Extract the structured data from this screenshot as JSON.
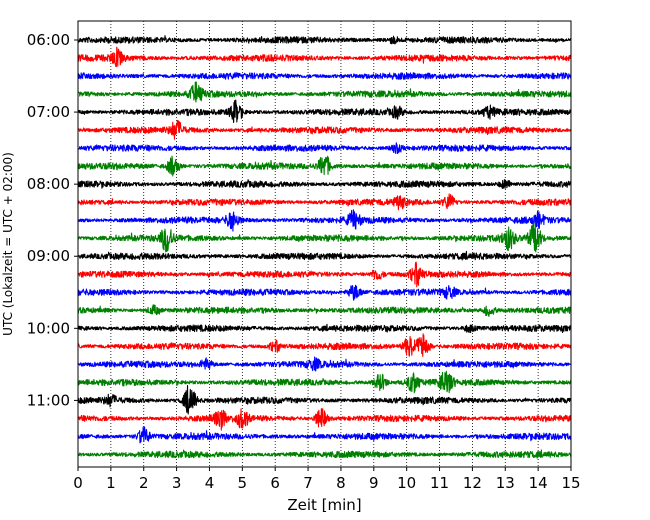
{
  "chart_data": {
    "type": "line",
    "title": "",
    "xlabel": "Zeit  [min]",
    "ylabel": "UTC (Lokalzeit = UTC + 02:00)",
    "xlim": [
      0,
      15
    ],
    "x_ticks": [
      "0",
      "1",
      "2",
      "3",
      "4",
      "5",
      "6",
      "7",
      "8",
      "9",
      "10",
      "11",
      "12",
      "13",
      "14",
      "15"
    ],
    "y_ticks": [
      "06:00",
      "07:00",
      "08:00",
      "09:00",
      "10:00",
      "11:00"
    ],
    "grid": "vertical dotted",
    "legend": "none",
    "trace_colors": [
      "#000000",
      "#ff0000",
      "#0000ff",
      "#008000"
    ],
    "traces": [
      {
        "start": "06:00",
        "color": "#000000",
        "events": [
          [
            9.6,
            3
          ]
        ]
      },
      {
        "start": "06:15",
        "color": "#ff0000",
        "events": [
          [
            1.2,
            7
          ]
        ]
      },
      {
        "start": "06:30",
        "color": "#0000ff",
        "events": []
      },
      {
        "start": "06:45",
        "color": "#008000",
        "events": [
          [
            3.6,
            9
          ]
        ]
      },
      {
        "start": "07:00",
        "color": "#000000",
        "events": [
          [
            4.8,
            10
          ],
          [
            9.7,
            5
          ],
          [
            12.5,
            5
          ]
        ]
      },
      {
        "start": "07:15",
        "color": "#ff0000",
        "events": [
          [
            3.0,
            8
          ]
        ]
      },
      {
        "start": "07:30",
        "color": "#0000ff",
        "events": [
          [
            9.7,
            4
          ]
        ]
      },
      {
        "start": "07:45",
        "color": "#008000",
        "events": [
          [
            2.9,
            9
          ],
          [
            7.5,
            11
          ]
        ]
      },
      {
        "start": "08:00",
        "color": "#000000",
        "events": [
          [
            13.0,
            4
          ]
        ]
      },
      {
        "start": "08:15",
        "color": "#ff0000",
        "events": [
          [
            11.3,
            7
          ],
          [
            9.8,
            5
          ]
        ]
      },
      {
        "start": "08:30",
        "color": "#0000ff",
        "events": [
          [
            4.7,
            9
          ],
          [
            8.4,
            8
          ],
          [
            14.0,
            6
          ]
        ]
      },
      {
        "start": "08:45",
        "color": "#008000",
        "events": [
          [
            2.7,
            12
          ],
          [
            13.1,
            10
          ],
          [
            13.9,
            14
          ]
        ]
      },
      {
        "start": "09:00",
        "color": "#000000",
        "events": []
      },
      {
        "start": "09:15",
        "color": "#ff0000",
        "events": [
          [
            10.3,
            10
          ],
          [
            9.1,
            5
          ]
        ]
      },
      {
        "start": "09:30",
        "color": "#0000ff",
        "events": [
          [
            8.4,
            7
          ],
          [
            11.3,
            5
          ]
        ]
      },
      {
        "start": "09:45",
        "color": "#008000",
        "events": [
          [
            2.3,
            4
          ],
          [
            12.5,
            5
          ]
        ]
      },
      {
        "start": "10:00",
        "color": "#000000",
        "events": [
          [
            11.9,
            3
          ]
        ]
      },
      {
        "start": "10:15",
        "color": "#ff0000",
        "events": [
          [
            10.1,
            11
          ],
          [
            10.5,
            12
          ],
          [
            6.0,
            5
          ]
        ]
      },
      {
        "start": "10:30",
        "color": "#0000ff",
        "events": [
          [
            3.9,
            5
          ],
          [
            7.2,
            4
          ]
        ]
      },
      {
        "start": "10:45",
        "color": "#008000",
        "events": [
          [
            9.2,
            8
          ],
          [
            10.2,
            9
          ],
          [
            11.2,
            11
          ]
        ]
      },
      {
        "start": "11:00",
        "color": "#000000",
        "events": [
          [
            3.4,
            14
          ],
          [
            1.0,
            4
          ]
        ]
      },
      {
        "start": "11:15",
        "color": "#ff0000",
        "events": [
          [
            4.3,
            10
          ],
          [
            5.0,
            8
          ],
          [
            7.4,
            9
          ]
        ]
      },
      {
        "start": "11:30",
        "color": "#0000ff",
        "events": [
          [
            2.0,
            8
          ]
        ]
      },
      {
        "start": "11:45",
        "color": "#008000",
        "events": []
      }
    ]
  }
}
